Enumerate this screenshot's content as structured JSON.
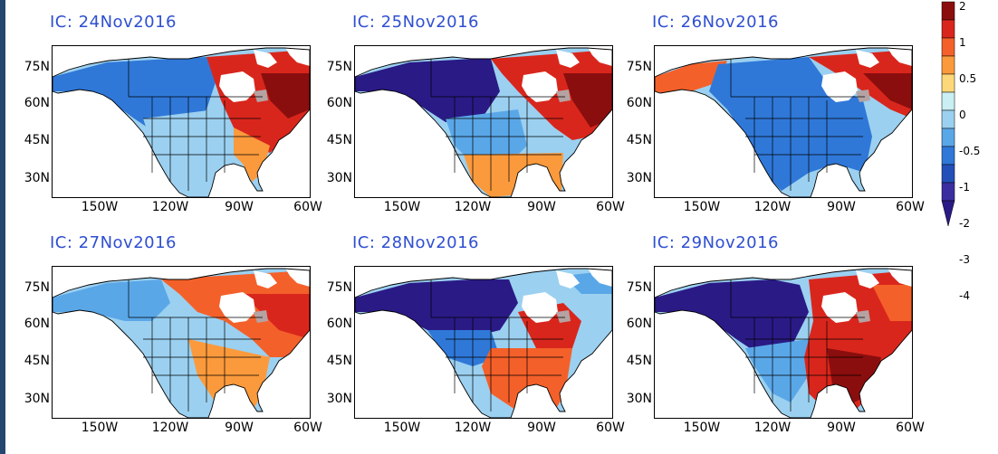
{
  "panels": [
    {
      "title": "IC: 24Nov2016",
      "lat_labels": [
        "75N",
        "60N",
        "45N",
        "30N"
      ],
      "lon_labels": [
        "150W",
        "120W",
        "90W",
        "60W"
      ]
    },
    {
      "title": "IC: 25Nov2016",
      "lat_labels": [
        "75N",
        "60N",
        "45N",
        "30N"
      ],
      "lon_labels": [
        "150W",
        "120W",
        "90W",
        "60W"
      ]
    },
    {
      "title": "IC: 26Nov2016",
      "lat_labels": [
        "75N",
        "60N",
        "45N",
        "30N"
      ],
      "lon_labels": [
        "150W",
        "120W",
        "90W",
        "60W"
      ]
    },
    {
      "title": "IC: 27Nov2016",
      "lat_labels": [
        "75N",
        "60N",
        "45N",
        "30N"
      ],
      "lon_labels": [
        "150W",
        "120W",
        "90W",
        "60W"
      ]
    },
    {
      "title": "IC: 28Nov2016",
      "lat_labels": [
        "75N",
        "60N",
        "45N",
        "30N"
      ],
      "lon_labels": [
        "150W",
        "120W",
        "90W",
        "60W"
      ]
    },
    {
      "title": "IC: 29Nov2016",
      "lat_labels": [
        "75N",
        "60N",
        "45N",
        "30N"
      ],
      "lon_labels": [
        "150W",
        "120W",
        "90W",
        "60W"
      ]
    }
  ],
  "colorbar": {
    "labels": [
      "2",
      "1",
      "0.5",
      "0",
      "-0.5",
      "-1",
      "-2",
      "-3",
      "-4"
    ],
    "colors": [
      "#8b0e0e",
      "#d9261c",
      "#f4602a",
      "#fb9a3c",
      "#fdd87a",
      "#c9eef3",
      "#9bd0f0",
      "#5aa7e8",
      "#2f78d8",
      "#2350b8",
      "#3b2ea0",
      "#2a1a86"
    ]
  },
  "colors": {
    "title": "#2f4fd1",
    "land_gray": "#b5a3a3",
    "ocean": "#ffffff"
  }
}
